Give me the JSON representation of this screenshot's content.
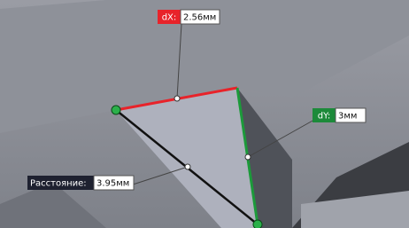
{
  "measurements": {
    "dx": {
      "label": "dX:",
      "value": "2.56мм"
    },
    "dy": {
      "label": "dY:",
      "value": "3мм"
    },
    "distance": {
      "label": "Расстояние:",
      "value": "3.95мм"
    }
  }
}
